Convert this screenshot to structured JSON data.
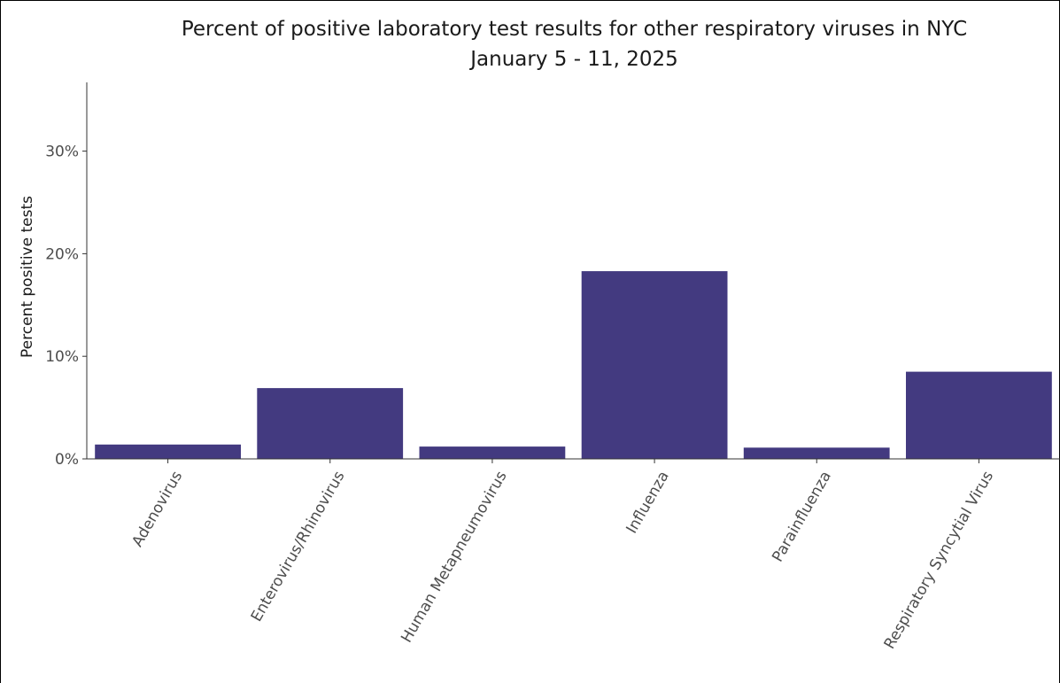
{
  "chart_data": {
    "type": "bar",
    "title": "Percent of positive laboratory test results for other respiratory viruses in NYC",
    "subtitle": "January 5 - 11, 2025",
    "xlabel": "",
    "ylabel": "Percent positive tests",
    "categories": [
      "Adenovirus",
      "Enterovirus/Rhinovirus",
      "Human Metapneumovirus",
      "Influenza",
      "Parainfluenza",
      "Respiratory Syncytial Virus"
    ],
    "values": [
      1.4,
      6.9,
      1.2,
      18.3,
      1.1,
      8.5
    ],
    "ylim": [
      0,
      36.7
    ],
    "yticks": [
      0,
      10,
      20,
      30
    ],
    "ytick_labels": [
      "0%",
      "10%",
      "20%",
      "30%"
    ],
    "grid": false,
    "legend": "none",
    "bar_color": "#433a80"
  }
}
